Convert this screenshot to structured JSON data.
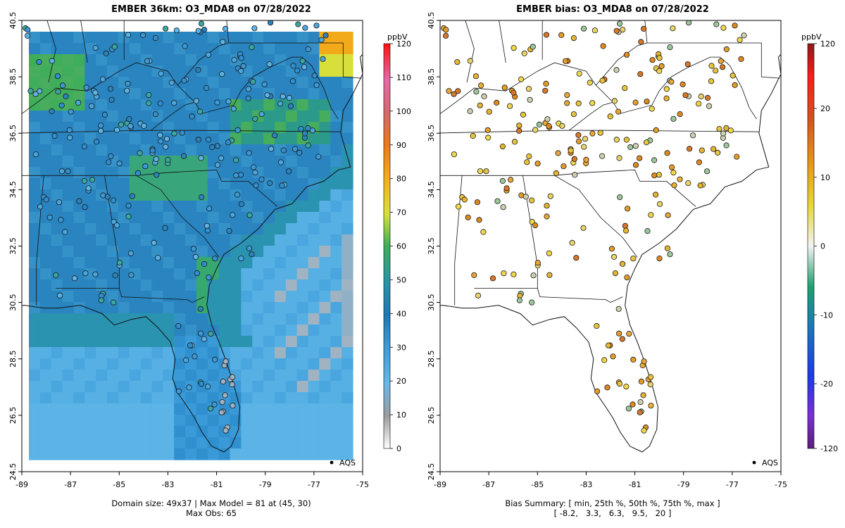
{
  "left_panel": {
    "title": "EMBER 36km: O3_MDA8 on 07/28/2022",
    "footer_line1": "Domain size: 49x37 | Max Model = 81 at (45, 30)",
    "footer_line2": "Max Obs: 65",
    "legend_label": "AQS",
    "colorbar_unit": "ppbV",
    "colorbar_ticks": [
      "0",
      "10",
      "20",
      "30",
      "40",
      "50",
      "60",
      "70",
      "80",
      "90",
      "100",
      "110",
      "120"
    ]
  },
  "right_panel": {
    "title": "EMBER bias: O3_MDA8 on 07/28/2022",
    "footer_line1": "Bias Summary: [ min, 25th %, 50th %, 75th %, max ]",
    "footer_line2": "[ -8.2,   3.3,   6.3,   9.5,   20 ]",
    "legend_label": "AQS",
    "colorbar_unit": "ppbV",
    "colorbar_ticks": [
      "120",
      "20",
      "10",
      "0",
      "-10",
      "-20",
      "-120"
    ]
  },
  "axes": {
    "x_ticks": [
      "-89",
      "-87",
      "-85",
      "-83",
      "-81",
      "-79",
      "-77",
      "-75"
    ],
    "y_ticks": [
      "24.5",
      "26.5",
      "28.5",
      "30.5",
      "32.5",
      "34.5",
      "36.5",
      "38.5",
      "40.5"
    ]
  },
  "chart_data": {
    "type": "heatmap",
    "map": "Southeastern United States",
    "lon_range": [
      -89,
      -75
    ],
    "lat_range": [
      24.5,
      40.5
    ],
    "domain_size": "49x37",
    "max_model": 81,
    "max_model_cell": [
      45,
      30
    ],
    "max_obs": 65,
    "bias_summary": {
      "min": -8.2,
      "p25": 3.3,
      "median": 6.3,
      "p75": 9.5,
      "max": 20
    },
    "model_colorbar_range_ppbV": [
      0,
      120
    ],
    "bias_colorbar_range_ppbV": [
      -120,
      120
    ],
    "colors": {
      "ocean_low": "#5bb3e6",
      "land_mid": "#2e86c1",
      "green": "#3fae5a",
      "yellow": "#e8e03a",
      "orange": "#f2a91a"
    }
  }
}
